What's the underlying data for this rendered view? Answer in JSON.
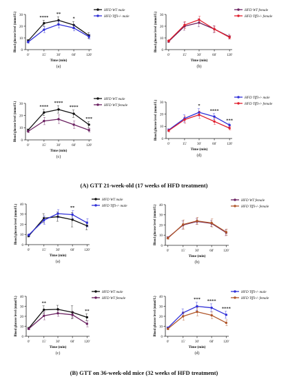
{
  "captions": {
    "block_a": "(A) GTT 21-week-old (17 weeks of HFD treatment)",
    "block_b": "(B) GTT on 36-week-old mice (32 weeks of HFD treatment)"
  },
  "colors": {
    "black": "#111111",
    "blue": "#2f2fd8",
    "red": "#e01e2c",
    "purple": "#6a2060",
    "brown": "#b0562a"
  },
  "chart_data": [
    {
      "type": "line",
      "id": "A-a",
      "block": "A",
      "sublabel": "(a)",
      "x": [
        "0'",
        "15'",
        "30'",
        "60'",
        "120'"
      ],
      "ylabel": "Blood glucose level (mmol/L)",
      "xlabel": "Time (min)",
      "ylim": [
        0,
        30
      ],
      "yticks": [
        0,
        10,
        20,
        30
      ],
      "series": [
        {
          "name": "HFD WT male",
          "color": "black",
          "values": [
            7.5,
            22.5,
            25.0,
            21.0,
            12.0
          ],
          "err": [
            1.2,
            2.5,
            3.0,
            3.0,
            2.5
          ]
        },
        {
          "name": "HFD Tff3-/- male",
          "color": "blue",
          "values": [
            6.5,
            17.0,
            21.5,
            18.5,
            11.0
          ],
          "err": [
            1.0,
            2.5,
            3.0,
            2.5,
            2.0
          ]
        }
      ],
      "annotations": [
        {
          "x": "15'",
          "text": "****"
        },
        {
          "x": "30'",
          "text": "**"
        },
        {
          "x": "60'",
          "text": "*"
        }
      ]
    },
    {
      "type": "line",
      "id": "A-b",
      "block": "A",
      "sublabel": "(b)",
      "x": [
        "0'",
        "15'",
        "30'",
        "60'",
        "120'"
      ],
      "ylabel": "Blood glucose level (mmol/L)",
      "xlabel": "Time (min)",
      "ylim": [
        0,
        30
      ],
      "yticks": [
        0,
        10,
        20,
        30
      ],
      "series": [
        {
          "name": "HFD WT female",
          "color": "purple",
          "values": [
            7.0,
            20.0,
            23.0,
            17.5,
            11.0
          ],
          "err": [
            1.0,
            3.5,
            3.5,
            3.0,
            2.0
          ]
        },
        {
          "name": "HFD Tff3-/- female",
          "color": "red",
          "values": [
            7.5,
            21.0,
            25.5,
            17.5,
            10.5
          ],
          "err": [
            1.0,
            3.0,
            3.0,
            2.5,
            1.5
          ]
        }
      ],
      "annotations": []
    },
    {
      "type": "line",
      "id": "A-c",
      "block": "A",
      "sublabel": "(c)",
      "x": [
        "0'",
        "15'",
        "30'",
        "60'",
        "120'"
      ],
      "ylabel": "Blood glucose level (mmol/L)",
      "xlabel": "Time (min)",
      "ylim": [
        0,
        30
      ],
      "yticks": [
        0,
        10,
        20,
        30
      ],
      "series": [
        {
          "name": "HFD WT male",
          "color": "black",
          "values": [
            8.0,
            22.5,
            25.0,
            21.5,
            12.5
          ],
          "err": [
            1.0,
            2.5,
            3.0,
            3.0,
            2.5
          ]
        },
        {
          "name": "HFD WT female",
          "color": "purple",
          "values": [
            7.0,
            15.5,
            17.0,
            12.5,
            8.0
          ],
          "err": [
            1.0,
            3.0,
            3.5,
            3.0,
            1.5
          ]
        }
      ],
      "annotations": [
        {
          "x": "15'",
          "text": "****"
        },
        {
          "x": "30'",
          "text": "****"
        },
        {
          "x": "60'",
          "text": "****"
        },
        {
          "x": "120'",
          "text": "***"
        }
      ]
    },
    {
      "type": "line",
      "id": "A-d",
      "block": "A",
      "sublabel": "(d)",
      "x": [
        "0'",
        "15'",
        "30'",
        "60'",
        "120'"
      ],
      "ylabel": "Blood glucose level (mmol/L)",
      "xlabel": "Time (min)",
      "ylim": [
        0,
        30
      ],
      "yticks": [
        0,
        10,
        20,
        30
      ],
      "series": [
        {
          "name": "HFD Tff3-/- male",
          "color": "blue",
          "values": [
            7.0,
            16.5,
            21.5,
            18.0,
            11.0
          ],
          "err": [
            1.0,
            3.0,
            3.0,
            2.5,
            1.5
          ]
        },
        {
          "name": "HFD Tff3-/- female",
          "color": "red",
          "values": [
            6.5,
            15.5,
            19.5,
            14.0,
            8.5
          ],
          "err": [
            1.0,
            3.0,
            3.0,
            2.5,
            1.5
          ]
        }
      ],
      "annotations": [
        {
          "x": "30'",
          "text": "*"
        },
        {
          "x": "60'",
          "text": "****"
        },
        {
          "x": "120'",
          "text": "***"
        }
      ]
    },
    {
      "type": "line",
      "id": "B-a",
      "block": "B",
      "sublabel": "(a)",
      "x": [
        "0'",
        "15'",
        "30'",
        "60'",
        "120'"
      ],
      "ylabel": "Blood glucose level (mmol/L)",
      "xlabel": "Time (min)",
      "ylim": [
        0,
        40
      ],
      "yticks": [
        0,
        10,
        20,
        30,
        40
      ],
      "series": [
        {
          "name": "HFD WT male",
          "color": "black",
          "values": [
            8.5,
            26.0,
            27.5,
            24.5,
            18.5
          ],
          "err": [
            1.0,
            4.5,
            4.5,
            7.0,
            4.0
          ]
        },
        {
          "name": "HFD Tff3-/- male",
          "color": "blue",
          "values": [
            9.5,
            24.0,
            30.5,
            29.5,
            21.5
          ],
          "err": [
            1.0,
            4.0,
            4.0,
            4.0,
            4.0
          ]
        }
      ],
      "annotations": [
        {
          "x": "60'",
          "text": "**"
        }
      ]
    },
    {
      "type": "line",
      "id": "B-b",
      "block": "B",
      "sublabel": "(b)",
      "x": [
        "0'",
        "15'",
        "30'",
        "60'",
        "120'"
      ],
      "ylabel": "Blood glucose level (mmol/L)",
      "xlabel": "Time (min)",
      "ylim": [
        0,
        40
      ],
      "yticks": [
        0,
        10,
        20,
        30,
        40
      ],
      "series": [
        {
          "name": "HFD WT female",
          "color": "purple",
          "values": [
            7.5,
            20.0,
            23.5,
            21.5,
            12.5
          ],
          "err": [
            1.0,
            4.0,
            3.0,
            3.0,
            3.0
          ]
        },
        {
          "name": "HFD Tff3-/- female",
          "color": "brown",
          "values": [
            7.0,
            20.5,
            24.0,
            22.0,
            13.0
          ],
          "err": [
            1.0,
            4.5,
            3.5,
            4.0,
            3.0
          ]
        }
      ],
      "annotations": []
    },
    {
      "type": "line",
      "id": "B-c",
      "block": "B",
      "sublabel": "(c)",
      "x": [
        "0'",
        "15'",
        "30'",
        "60'",
        "120'"
      ],
      "ylabel": "Blood glucose level (mmol/L)",
      "xlabel": "Time (min)",
      "ylim": [
        0,
        40
      ],
      "yticks": [
        0,
        10,
        20,
        30,
        40
      ],
      "series": [
        {
          "name": "HFD WT male",
          "color": "black",
          "values": [
            8.0,
            26.5,
            27.0,
            24.0,
            19.0
          ],
          "err": [
            1.0,
            4.0,
            4.0,
            6.5,
            3.5
          ]
        },
        {
          "name": "HFD WT female",
          "color": "purple",
          "values": [
            7.5,
            20.5,
            23.0,
            21.5,
            12.5
          ],
          "err": [
            1.0,
            4.0,
            3.0,
            3.0,
            3.0
          ]
        }
      ],
      "annotations": [
        {
          "x": "15'",
          "text": "**"
        },
        {
          "x": "120'",
          "text": "**"
        }
      ]
    },
    {
      "type": "line",
      "id": "B-d",
      "block": "B",
      "sublabel": "(d)",
      "x": [
        "0'",
        "15'",
        "30'",
        "60'",
        "120'"
      ],
      "ylabel": "Blood glucose level (mmol/L)",
      "xlabel": "Time (min)",
      "ylim": [
        0,
        40
      ],
      "yticks": [
        0,
        10,
        20,
        30,
        40
      ],
      "series": [
        {
          "name": "HFD Tff3-/- male",
          "color": "blue",
          "values": [
            8.5,
            23.5,
            30.0,
            28.5,
            21.5
          ],
          "err": [
            1.0,
            4.0,
            4.0,
            4.0,
            3.5
          ]
        },
        {
          "name": "HFD Tff3-/- female",
          "color": "brown",
          "values": [
            7.5,
            20.0,
            24.5,
            21.0,
            13.5
          ],
          "err": [
            1.0,
            4.0,
            4.0,
            3.5,
            3.0
          ]
        }
      ],
      "annotations": [
        {
          "x": "30'",
          "text": "***"
        },
        {
          "x": "60'",
          "text": "****"
        },
        {
          "x": "120'",
          "text": "****"
        }
      ]
    }
  ]
}
